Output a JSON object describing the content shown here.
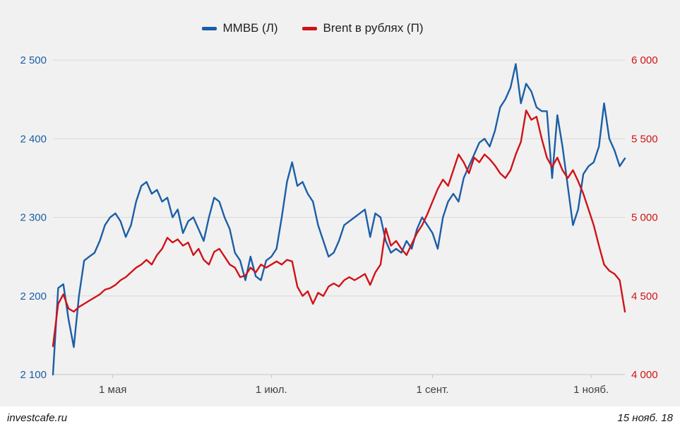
{
  "page": {
    "background": "#f1f1f1"
  },
  "legend": [
    {
      "label": "ММВБ (Л)",
      "color": "#1b5ea6"
    },
    {
      "label": "Brent в рублях (П)",
      "color": "#d01217"
    }
  ],
  "footer": {
    "source": "investcafe.ru",
    "date": "15 нояб. 18"
  },
  "chart_data": {
    "type": "line",
    "title": "",
    "legend_position": "top",
    "grid": "horizontal",
    "background": "#f1f1f1",
    "gridline_color": "#d9d9d9",
    "x_axis_label_color": "#404040",
    "x_tick_labels": [
      "1 мая",
      "1 июл.",
      "1 сент.",
      "1 нояб."
    ],
    "x_tick_positions": [
      23,
      84,
      146,
      207
    ],
    "x_range": [
      0,
      220
    ],
    "left_axis": {
      "range": [
        2100,
        2500
      ],
      "ticks": [
        2100,
        2200,
        2300,
        2400,
        2500
      ],
      "labels": [
        "2 100",
        "2 200",
        "2 300",
        "2 400",
        "2 500"
      ],
      "color": "#1b5ea6"
    },
    "right_axis": {
      "range": [
        4000,
        6000
      ],
      "ticks": [
        4000,
        4500,
        5000,
        5500,
        6000
      ],
      "labels": [
        "4 000",
        "4 500",
        "5 000",
        "5 500",
        "6 000"
      ],
      "color": "#d01217"
    },
    "series": [
      {
        "name": "ММВБ (Л)",
        "axis": "left",
        "color": "#1b5ea6",
        "x_step": 2,
        "values": [
          2100,
          2210,
          2215,
          2170,
          2135,
          2200,
          2245,
          2250,
          2255,
          2270,
          2290,
          2300,
          2305,
          2295,
          2275,
          2290,
          2320,
          2340,
          2345,
          2330,
          2335,
          2320,
          2325,
          2300,
          2310,
          2280,
          2295,
          2300,
          2285,
          2270,
          2300,
          2325,
          2320,
          2300,
          2285,
          2255,
          2245,
          2220,
          2250,
          2225,
          2220,
          2245,
          2250,
          2260,
          2300,
          2345,
          2370,
          2340,
          2345,
          2330,
          2320,
          2290,
          2270,
          2250,
          2255,
          2270,
          2290,
          2295,
          2300,
          2305,
          2310,
          2275,
          2305,
          2300,
          2270,
          2255,
          2260,
          2255,
          2270,
          2260,
          2285,
          2300,
          2290,
          2280,
          2260,
          2300,
          2320,
          2330,
          2320,
          2350,
          2365,
          2380,
          2395,
          2400,
          2390,
          2410,
          2440,
          2450,
          2465,
          2495,
          2445,
          2470,
          2460,
          2440,
          2435,
          2435,
          2350,
          2430,
          2390,
          2340,
          2290,
          2310,
          2355,
          2365,
          2370,
          2390,
          2445,
          2400,
          2385,
          2365,
          2375
        ]
      },
      {
        "name": "Brent в рублях (П)",
        "axis": "right",
        "color": "#d01217",
        "x_step": 2,
        "values": [
          4180,
          4450,
          4510,
          4420,
          4400,
          4430,
          4450,
          4470,
          4490,
          4510,
          4540,
          4550,
          4570,
          4600,
          4620,
          4650,
          4680,
          4700,
          4730,
          4700,
          4760,
          4800,
          4870,
          4840,
          4860,
          4820,
          4840,
          4760,
          4800,
          4730,
          4700,
          4780,
          4800,
          4750,
          4700,
          4680,
          4620,
          4630,
          4680,
          4650,
          4700,
          4680,
          4700,
          4720,
          4700,
          4730,
          4720,
          4560,
          4500,
          4530,
          4450,
          4520,
          4500,
          4560,
          4580,
          4560,
          4600,
          4620,
          4600,
          4620,
          4640,
          4570,
          4650,
          4700,
          4930,
          4820,
          4850,
          4800,
          4760,
          4830,
          4900,
          4950,
          5020,
          5100,
          5180,
          5240,
          5200,
          5300,
          5400,
          5350,
          5280,
          5380,
          5350,
          5400,
          5370,
          5330,
          5280,
          5250,
          5300,
          5400,
          5480,
          5680,
          5620,
          5640,
          5500,
          5380,
          5320,
          5380,
          5300,
          5250,
          5300,
          5230,
          5150,
          5050,
          4950,
          4820,
          4700,
          4660,
          4640,
          4600,
          4400
        ]
      }
    ]
  }
}
